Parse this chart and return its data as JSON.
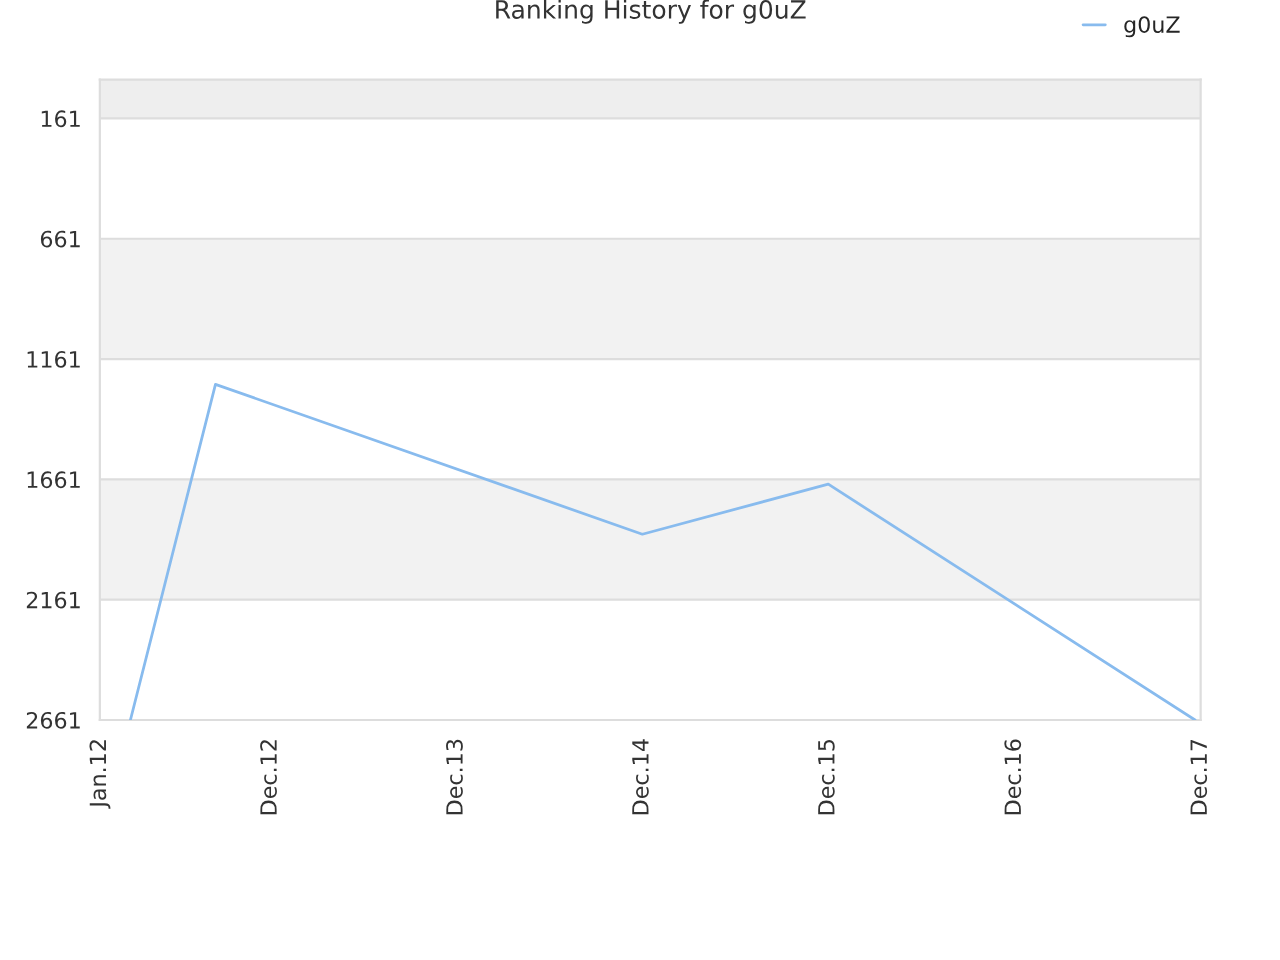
{
  "chart_data": {
    "type": "line",
    "title": "Ranking History for g0uZ",
    "x": [
      "2012-03-01",
      "2012-08-15",
      "2014-12-01",
      "2015-12-01",
      "2017-11-20"
    ],
    "series": [
      {
        "name": "g0uZ",
        "color": "#88bbee",
        "values": [
          2661,
          1266,
          1889,
          1681,
          2661
        ]
      }
    ],
    "xlim": [
      "2012-01-01",
      "2017-12-01"
    ],
    "xticks": [
      {
        "value": "2012-01-01",
        "label": "Jan.12"
      },
      {
        "value": "2012-12-01",
        "label": "Dec.12"
      },
      {
        "value": "2013-12-01",
        "label": "Dec.13"
      },
      {
        "value": "2014-12-01",
        "label": "Dec.14"
      },
      {
        "value": "2015-12-01",
        "label": "Dec.15"
      },
      {
        "value": "2016-12-01",
        "label": "Dec.16"
      },
      {
        "value": "2017-12-01",
        "label": "Dec.17"
      }
    ],
    "ylim": [
      2661,
      0
    ],
    "yticks": [
      161,
      661,
      1161,
      1661,
      2161,
      2661
    ],
    "bands": [
      {
        "axis": "y",
        "from": 0,
        "to": 161,
        "color": "#eeeeee"
      },
      {
        "axis": "y",
        "from": 661,
        "to": 1161,
        "color": "#f2f2f2"
      },
      {
        "axis": "y",
        "from": 1661,
        "to": 2161,
        "color": "#f2f2f2"
      }
    ],
    "grid": "y",
    "legend": "top right",
    "marker": "none",
    "line_style": "solid"
  }
}
